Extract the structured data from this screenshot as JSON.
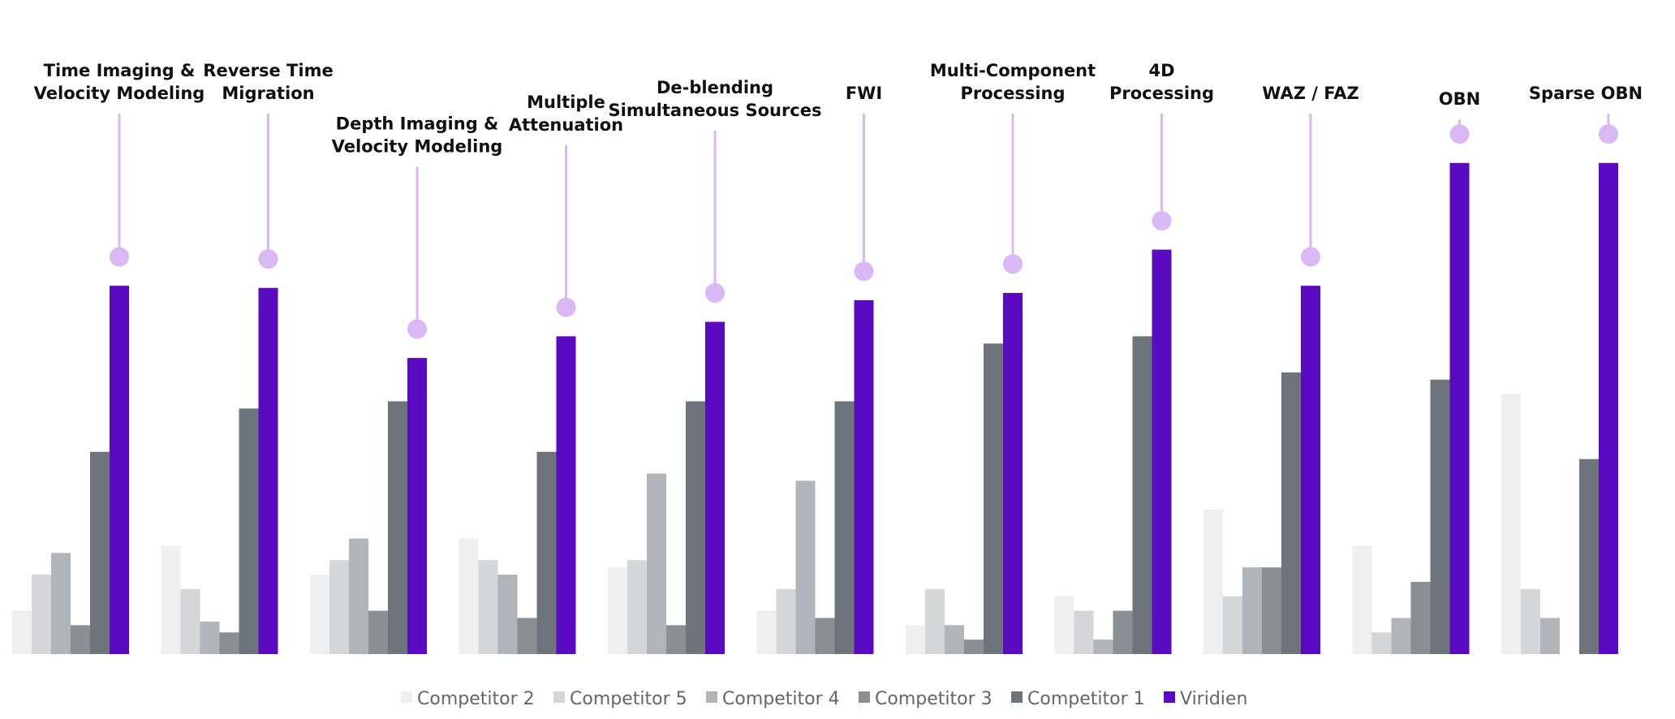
{
  "chart_data": {
    "type": "bar",
    "title": "",
    "xlabel": "",
    "ylabel": "",
    "ylim": [
      0,
      70
    ],
    "grid": false,
    "legend_position": "bottom",
    "categories": [
      "Time Imaging & Velocity Modeling",
      "Reverse Time Migration",
      "Depth Imaging & Velocity Modeling",
      "Multiple Attenuation",
      "De-blending Simultaneous Sources",
      "FWI",
      "Multi-Component Processing",
      "4D Processing",
      "WAZ / FAZ",
      "OBN",
      "Sparse OBN"
    ],
    "category_label_lines": [
      [
        "Time Imaging &",
        "Velocity Modeling"
      ],
      [
        "Reverse Time",
        "Migration"
      ],
      [
        "Depth Imaging &",
        "Velocity Modeling"
      ],
      [
        "Multiple",
        "Attenuation"
      ],
      [
        "De-blending",
        "Simultaneous Sources"
      ],
      [
        "FWI"
      ],
      [
        "Multi-Component",
        "Processing"
      ],
      [
        "4D",
        "Processing"
      ],
      [
        "WAZ / FAZ"
      ],
      [
        "OBN"
      ],
      [
        "Sparse OBN"
      ]
    ],
    "series": [
      {
        "name": "Competitor 2",
        "color": "#efeff0",
        "values": [
          6,
          15,
          11,
          16,
          12,
          6,
          4,
          8,
          20,
          15,
          36
        ]
      },
      {
        "name": "Competitor 5",
        "color": "#d4d6d8",
        "values": [
          11,
          9,
          13,
          13,
          13,
          9,
          9,
          6,
          8,
          3,
          9
        ]
      },
      {
        "name": "Competitor 4",
        "color": "#b1b4b8",
        "values": [
          14,
          4.5,
          16,
          11,
          25,
          24,
          4,
          2,
          12,
          5,
          5
        ]
      },
      {
        "name": "Competitor 3",
        "color": "#8a8f94",
        "values": [
          4,
          3,
          6,
          5,
          4,
          5,
          2,
          6,
          12,
          10,
          0
        ]
      },
      {
        "name": "Competitor 1",
        "color": "#6e747b",
        "values": [
          28,
          34,
          35,
          28,
          35,
          35,
          43,
          44,
          39,
          38,
          27
        ]
      },
      {
        "name": "Viridien",
        "color": "#5a0ac0",
        "values": [
          51,
          50.7,
          41,
          44,
          46,
          49,
          50,
          56,
          51,
          68,
          68
        ]
      }
    ],
    "lollipop_values": [
      55,
      54.7,
      45,
      48,
      50,
      53,
      54,
      60,
      55,
      72,
      72
    ],
    "lollipop_color": "#d9b8f5"
  }
}
